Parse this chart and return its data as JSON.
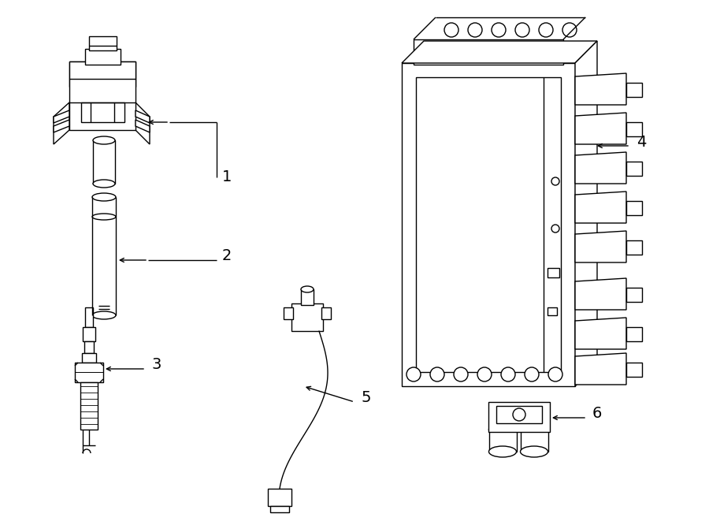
{
  "background_color": "#ffffff",
  "line_color": "#000000",
  "fig_width": 9.0,
  "fig_height": 6.61,
  "dpi": 100,
  "label_fontsize": 14,
  "callout_lw": 1.0,
  "part_lw": 1.0
}
